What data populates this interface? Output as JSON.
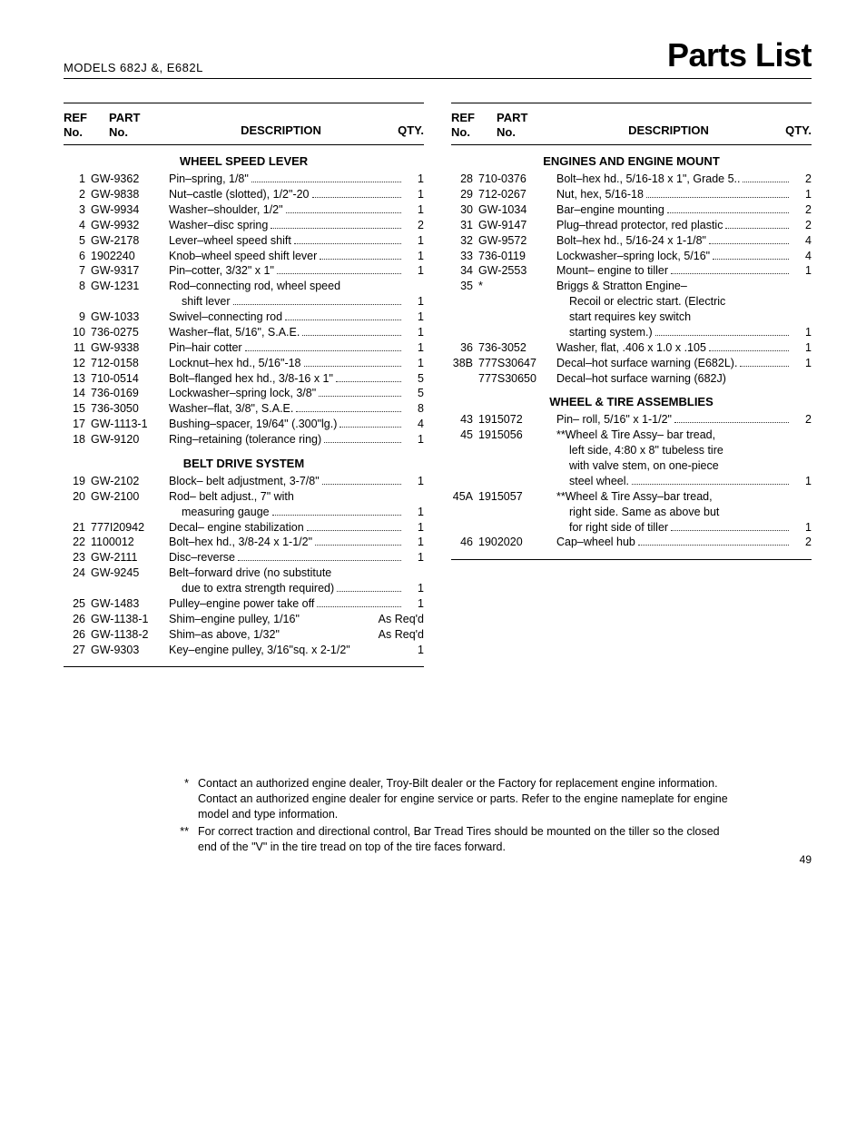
{
  "header": {
    "models": "MODELS  682J &, E682L",
    "title": "Parts List"
  },
  "left": {
    "headers": {
      "ref1": "REF",
      "ref2": "No.",
      "part1": "PART",
      "part2": "No.",
      "desc": "DESCRIPTION",
      "qty": "QTY."
    },
    "sections": [
      {
        "title": "WHEEL SPEED LEVER",
        "rows": [
          {
            "ref": "1",
            "part": "GW-9362",
            "desc": "Pin–spring, 1/8\"",
            "qty": "1"
          },
          {
            "ref": "2",
            "part": "GW-9838",
            "desc": "Nut–castle (slotted), 1/2\"-20",
            "qty": "1"
          },
          {
            "ref": "3",
            "part": "GW-9934",
            "desc": "Washer–shoulder, 1/2\"",
            "qty": "1"
          },
          {
            "ref": "4",
            "part": "GW-9932",
            "desc": "Washer–disc spring",
            "qty": "2"
          },
          {
            "ref": "5",
            "part": "GW-2178",
            "desc": "Lever–wheel speed shift",
            "qty": "1"
          },
          {
            "ref": "6",
            "part": "1902240",
            "desc": "Knob–wheel speed shift lever",
            "qty": "1"
          },
          {
            "ref": "7",
            "part": "GW-9317",
            "desc": "Pin–cotter, 3/32\" x 1\"",
            "qty": "1"
          },
          {
            "ref": "8",
            "part": "GW-1231",
            "desc": "Rod–connecting rod, wheel speed",
            "desc2": "shift lever",
            "qty": "1"
          },
          {
            "ref": "9",
            "part": "GW-1033",
            "desc": "Swivel–connecting rod",
            "qty": "1"
          },
          {
            "ref": "10",
            "part": "736-0275",
            "desc": "Washer–flat, 5/16\", S.A.E.",
            "qty": "1"
          },
          {
            "ref": "11",
            "part": "GW-9338",
            "desc": "Pin–hair cotter",
            "qty": "1"
          },
          {
            "ref": "12",
            "part": "712-0158",
            "desc": "Locknut–hex hd., 5/16\"-18",
            "qty": "1"
          },
          {
            "ref": "13",
            "part": "710-0514",
            "desc": "Bolt–flanged hex hd., 3/8-16 x 1\"",
            "qty": "5"
          },
          {
            "ref": "14",
            "part": "736-0169",
            "desc": "Lockwasher–spring lock, 3/8\"",
            "qty": "5"
          },
          {
            "ref": "15",
            "part": "736-3050",
            "desc": "Washer–flat, 3/8\", S.A.E.",
            "qty": "8"
          },
          {
            "ref": "17",
            "part": "GW-1113-1",
            "desc": "Bushing–spacer, 19/64\" (.300\"lg.)",
            "qty": "4"
          },
          {
            "ref": "18",
            "part": "GW-9120",
            "desc": "Ring–retaining (tolerance ring)",
            "qty": "1"
          }
        ]
      },
      {
        "title": "BELT DRIVE SYSTEM",
        "rows": [
          {
            "ref": "19",
            "part": "GW-2102",
            "desc": "Block– belt adjustment, 3-7/8\"",
            "qty": "1"
          },
          {
            "ref": "20",
            "part": "GW-2100",
            "desc": "Rod– belt adjust., 7\" with",
            "desc2": "measuring gauge",
            "qty": "1"
          },
          {
            "ref": "21",
            "part": "777I20942",
            "desc": "Decal– engine stabilization",
            "qty": "1"
          },
          {
            "ref": "22",
            "part": "1100012",
            "desc": "Bolt–hex hd., 3/8-24 x 1-1/2\"",
            "qty": "1"
          },
          {
            "ref": "23",
            "part": "GW-2111",
            "desc": "Disc–reverse",
            "qty": "1"
          },
          {
            "ref": "24",
            "part": "GW-9245",
            "desc": "Belt–forward drive (no substitute",
            "desc2": "due to extra strength required)",
            "qty": "1"
          },
          {
            "ref": "25",
            "part": "GW-1483",
            "desc": "Pulley–engine power take off",
            "qty": "1"
          },
          {
            "ref": "26",
            "part": "GW-1138-1",
            "desc": "Shim–engine pulley, 1/16\"",
            "qty": "As Req'd",
            "noDots": true
          },
          {
            "ref": "26",
            "part": "GW-1138-2",
            "desc": "Shim–as above, 1/32\"",
            "qty": "As Req'd",
            "noDots": true
          },
          {
            "ref": "27",
            "part": "GW-9303",
            "desc": "Key–engine pulley, 3/16\"sq. x 2-1/2\"",
            "qty": "1",
            "tight": true
          }
        ]
      }
    ]
  },
  "right": {
    "headers": {
      "ref1": "REF",
      "ref2": "No.",
      "part1": "PART",
      "part2": "No.",
      "desc": "DESCRIPTION",
      "qty": "QTY."
    },
    "sections": [
      {
        "title": "ENGINES AND ENGINE MOUNT",
        "rows": [
          {
            "ref": "28",
            "part": "710-0376",
            "desc": "Bolt–hex hd., 5/16-18 x 1\", Grade 5..",
            "qty": "2"
          },
          {
            "ref": "29",
            "part": "712-0267",
            "desc": "Nut, hex, 5/16-18",
            "qty": "1"
          },
          {
            "ref": "30",
            "part": "GW-1034",
            "desc": "Bar–engine mounting",
            "qty": "2"
          },
          {
            "ref": "31",
            "part": "GW-9147",
            "desc": "Plug–thread protector, red plastic",
            "qty": "2"
          },
          {
            "ref": "32",
            "part": "GW-9572",
            "desc": "Bolt–hex hd., 5/16-24 x 1-1/8\"",
            "qty": "4"
          },
          {
            "ref": "33",
            "part": "736-0119",
            "desc": "Lockwasher–spring lock, 5/16\"",
            "qty": "4"
          },
          {
            "ref": "34",
            "part": "GW-2553",
            "desc": "Mount– engine to tiller",
            "qty": "1"
          },
          {
            "ref": "35",
            "part": "*",
            "desc": "Briggs & Stratton Engine–",
            "desc2": "Recoil or electric start. (Electric",
            "desc3": "start requires key switch",
            "desc4": "starting system.)",
            "qty": "1"
          },
          {
            "ref": "36",
            "part": "736-3052",
            "desc": "Washer, flat, .406 x 1.0 x .105",
            "qty": "1"
          },
          {
            "ref": "38B",
            "part": "777S30647",
            "desc": "Decal–hot surface warning (E682L).",
            "qty": "1"
          },
          {
            "ref": "",
            "part": "777S30650",
            "desc": "Decal–hot surface warning (682J)",
            "qty": "",
            "noDots": true
          }
        ]
      },
      {
        "title": "WHEEL & TIRE ASSEMBLIES",
        "rows": [
          {
            "ref": "43",
            "part": "1915072",
            "desc": "Pin– roll, 5/16\" x 1-1/2\"",
            "qty": "2"
          },
          {
            "ref": "45",
            "part": "1915056",
            "desc": "**Wheel & Tire Assy– bar tread,",
            "desc2": "left side, 4:80 x 8\" tubeless tire",
            "desc3": "with valve stem, on one-piece",
            "desc4": "steel wheel.",
            "qty": "1"
          },
          {
            "ref": "45A",
            "part": "1915057",
            "desc": "**Wheel & Tire Assy–bar tread,",
            "desc2": "right side. Same as above but",
            "desc3": "for right side of tiller",
            "qty": "1"
          },
          {
            "ref": "46",
            "part": "1902020",
            "desc": "Cap–wheel hub",
            "qty": "2"
          }
        ]
      }
    ]
  },
  "footnotes": [
    {
      "mark": "*",
      "text": "Contact an authorized engine dealer, Troy-Bilt dealer or the Factory for replacement engine information.",
      "text2": "Contact an authorized engine dealer for engine service or parts. Refer to the engine nameplate for engine model and type information."
    },
    {
      "mark": "**",
      "text": "For correct traction and directional control, Bar Tread Tires should be mounted on the tiller so the closed end of the \"V\" in the tire tread on top of the tire faces forward."
    }
  ],
  "pageNumber": "49"
}
